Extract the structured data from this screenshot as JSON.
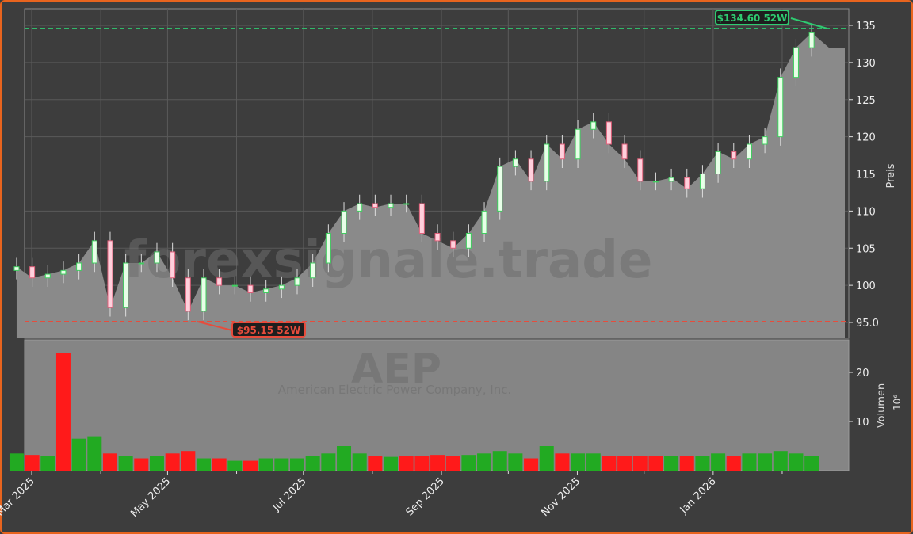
{
  "chart_data": [
    {
      "type": "candlestick",
      "panel": "price",
      "ylabel": "Preis",
      "ylim": [
        93,
        137
      ],
      "yticks": [
        "95.0",
        "100",
        "105",
        "110",
        "115",
        "120",
        "125",
        "130",
        "135"
      ],
      "ytick_values": [
        95,
        100,
        105,
        110,
        115,
        120,
        125,
        130,
        135
      ],
      "grid": true,
      "x": [
        "2025-02-24",
        "2025-03-03",
        "2025-03-10",
        "2025-03-17",
        "2025-03-24",
        "2025-03-31",
        "2025-04-07",
        "2025-04-14",
        "2025-04-21",
        "2025-04-28",
        "2025-05-05",
        "2025-05-12",
        "2025-05-19",
        "2025-05-26",
        "2025-06-02",
        "2025-06-09",
        "2025-06-16",
        "2025-06-23",
        "2025-06-30",
        "2025-07-07",
        "2025-07-14",
        "2025-07-21",
        "2025-07-28",
        "2025-08-04",
        "2025-08-11",
        "2025-08-18",
        "2025-08-25",
        "2025-09-01",
        "2025-09-08",
        "2025-09-15",
        "2025-09-22",
        "2025-09-29",
        "2025-10-06",
        "2025-10-13",
        "2025-10-20",
        "2025-10-27",
        "2025-11-03",
        "2025-11-10",
        "2025-11-17",
        "2025-11-24",
        "2025-12-01",
        "2025-12-08",
        "2025-12-15",
        "2025-12-22",
        "2025-12-29",
        "2026-01-05",
        "2026-01-12",
        "2026-01-19",
        "2026-01-26",
        "2026-02-02",
        "2026-02-09",
        "2026-02-16"
      ],
      "close": [
        102.5,
        101,
        101.5,
        102,
        103,
        106,
        97,
        103,
        103,
        104.5,
        101,
        96.5,
        101,
        100,
        100,
        99,
        99.5,
        100,
        101,
        103,
        107,
        110,
        111,
        110.5,
        111,
        111,
        107,
        106,
        105,
        107,
        110,
        116,
        117,
        114,
        119,
        117,
        121,
        122,
        119,
        117,
        114,
        114,
        114.5,
        113,
        115,
        118,
        117,
        119,
        120,
        128,
        132,
        134
      ],
      "xtick_labels": [
        "Mar 2025",
        "May 2025",
        "Jul 2025",
        "Sep 2025",
        "Nov 2025",
        "Jan 2026"
      ],
      "xtick_dates": [
        "2025-03-01",
        "2025-05-01",
        "2025-07-01",
        "2025-09-01",
        "2025-11-01",
        "2026-01-01"
      ],
      "annotations": [
        {
          "label": "$134.60 52W",
          "value": 134.6,
          "color": "#2ecc71",
          "kind": "52-week high"
        },
        {
          "label": "$95.15 52W",
          "value": 95.15,
          "color": "#e74c3c",
          "kind": "52-week low"
        }
      ]
    },
    {
      "type": "bar",
      "panel": "volume",
      "ylabel": "Volumen",
      "unit_label": "10⁶",
      "yticks": [
        "10",
        "20"
      ],
      "ytick_values": [
        10,
        20
      ],
      "ylim": [
        0,
        27
      ],
      "values": [
        3.5,
        3.2,
        3.0,
        24,
        6.5,
        7,
        3.5,
        3,
        2.5,
        3,
        3.5,
        4,
        2.5,
        2.5,
        2,
        2,
        2.5,
        2.5,
        2.5,
        3,
        3.5,
        5,
        3.5,
        3,
        2.8,
        3,
        3,
        3.2,
        3,
        3.2,
        3.5,
        4,
        3.5,
        2.5,
        5,
        3.5,
        3.5,
        3.5,
        3,
        3,
        3,
        3,
        3,
        3,
        3,
        3.5,
        3,
        3.5,
        3.5,
        4,
        3.5,
        3
      ],
      "up": [
        true,
        false,
        true,
        false,
        true,
        true,
        false,
        true,
        false,
        true,
        false,
        false,
        true,
        false,
        true,
        false,
        true,
        true,
        true,
        true,
        true,
        true,
        true,
        false,
        true,
        false,
        false,
        false,
        false,
        true,
        true,
        true,
        true,
        false,
        true,
        false,
        true,
        true,
        false,
        false,
        false,
        false,
        true,
        false,
        true,
        true,
        false,
        true,
        true,
        true,
        true,
        true
      ]
    }
  ],
  "colors": {
    "up": "#22aa22",
    "down": "#ff1a1a",
    "high": "#2ecc71",
    "low": "#e74c3c",
    "area": "#8a8a8a",
    "border": "#e8641e"
  },
  "watermark": {
    "site": "forexsignale.trade",
    "ticker": "AEP",
    "company": "American Electric Power Company, Inc."
  }
}
